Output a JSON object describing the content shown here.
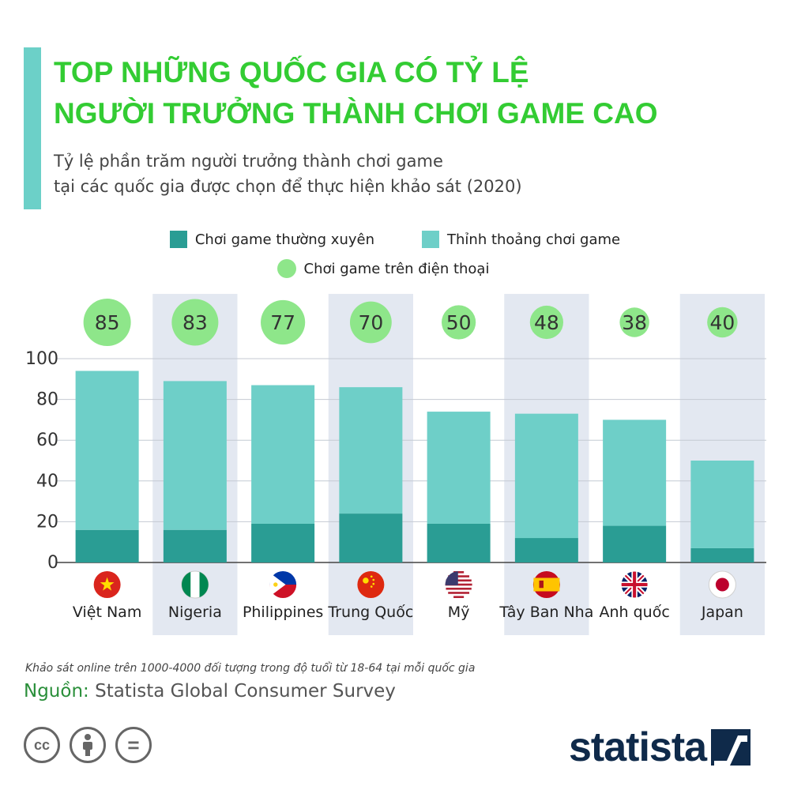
{
  "header": {
    "title_line1": "TOP NHỮNG QUỐC GIA CÓ TỶ LỆ",
    "title_line2": "NGƯỜI TRƯỞNG THÀNH CHƠI GAME CAO",
    "subtitle_line1": "Tỷ lệ phần trăm người trưởng thành chơi game",
    "subtitle_line2": "tại các quốc gia được chọn để thực hiện khảo sát (2020)"
  },
  "colors": {
    "title": "#33cc33",
    "regular": "#2a9d94",
    "occasional": "#6ecfc8",
    "mobile": "#8ee68a",
    "band": "#e3e8f1",
    "accent_bar": "#6cd0c8"
  },
  "chart_data": {
    "type": "bar",
    "stacked": true,
    "categories": [
      "Việt Nam",
      "Nigeria",
      "Philippines",
      "Trung Quốc",
      "Mỹ",
      "Tây Ban Nha",
      "Anh quốc",
      "Japan"
    ],
    "series": [
      {
        "name": "Chơi game thường xuyên",
        "values": [
          16,
          16,
          19,
          24,
          19,
          12,
          18,
          7
        ]
      },
      {
        "name": "Thỉnh thoảng chơi game",
        "values": [
          78,
          73,
          68,
          62,
          55,
          61,
          52,
          43
        ]
      }
    ],
    "mobile_series": {
      "name": "Chơi game trên điện thoại",
      "values": [
        85,
        83,
        77,
        70,
        50,
        48,
        38,
        40
      ]
    },
    "flags": [
      "vietnam",
      "nigeria",
      "philippines",
      "china",
      "usa",
      "spain",
      "uk",
      "japan"
    ],
    "ylim": [
      0,
      100
    ],
    "yticks": [
      0,
      20,
      40,
      60,
      80,
      100
    ],
    "grid": true,
    "legend_placement": "top-center"
  },
  "footer": {
    "note": "Khảo sát online trên 1000-4000 đối tượng trong độ tuổi từ 18-64 tại mỗi quốc gia",
    "source_label": "Nguồn:",
    "source_text": " Statista Global Consumer Survey",
    "cc_icons": [
      {
        "name": "creative-commons-icon",
        "glyph": "cc"
      },
      {
        "name": "attribution-icon",
        "glyph": ""
      },
      {
        "name": "no-derivatives-icon",
        "glyph": "="
      }
    ],
    "logo": "statista"
  }
}
